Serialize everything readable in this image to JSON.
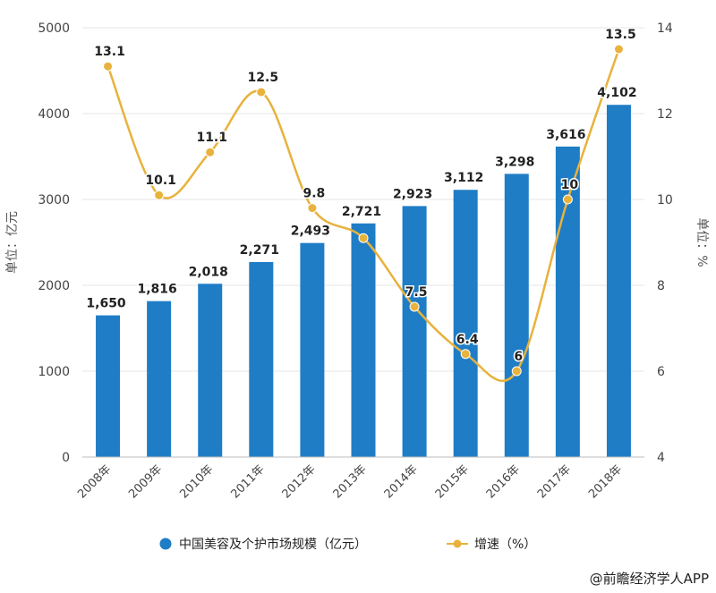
{
  "chart_data": {
    "type": "bar",
    "categories": [
      "2008年",
      "2009年",
      "2010年",
      "2011年",
      "2012年",
      "2013年",
      "2014年",
      "2015年",
      "2016年",
      "2017年",
      "2018年"
    ],
    "series": [
      {
        "name": "中国美容及个护市场规模（亿元）",
        "type": "bar",
        "axis": "left",
        "color": "#1f7dc6",
        "values": [
          1650,
          1816,
          2018,
          2271,
          2493,
          2721,
          2923,
          3112,
          3298,
          3616,
          4102
        ],
        "labels": [
          "1,650",
          "1,816",
          "2,018",
          "2,271",
          "2,493",
          "2,721",
          "2,923",
          "3,112",
          "3,298",
          "3,616",
          "4,102"
        ]
      },
      {
        "name": "增速（%）",
        "type": "line",
        "axis": "right",
        "color": "#e8b23c",
        "values": [
          13.1,
          10.1,
          11.1,
          12.5,
          9.8,
          9.1,
          7.5,
          6.4,
          6.0,
          10.0,
          13.5
        ],
        "labels": [
          "13.1",
          "10.1",
          "11.1",
          "12.5",
          "9.8",
          "",
          "7.5",
          "6.4",
          "6",
          "10",
          "13.5"
        ]
      }
    ],
    "y_left": {
      "label": "单位：亿元",
      "ylim": [
        0,
        5000
      ],
      "ticks": [
        0,
        1000,
        2000,
        3000,
        4000,
        5000
      ]
    },
    "y_right": {
      "label": "单位：%",
      "ylim": [
        4,
        14
      ],
      "ticks": [
        4,
        6,
        8,
        10,
        12,
        14
      ]
    },
    "grid": true,
    "legend": "bottom-center"
  },
  "source": "@前瞻经济学人APP"
}
